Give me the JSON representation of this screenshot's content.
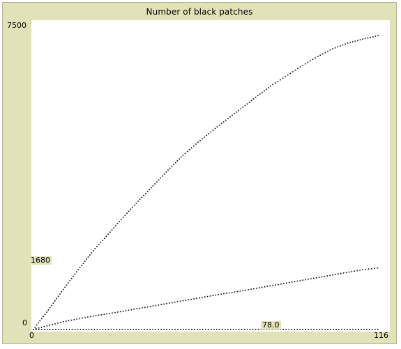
{
  "plot": {
    "title": "Number of  black patches",
    "y_max_label": "7500",
    "y_min_label": "0",
    "x_min_label": "0",
    "x_max_label": "116"
  },
  "value_labels": {
    "series2_label": "1680",
    "series3_label": "78.0"
  },
  "colors": {
    "frame": "#e2e2b9",
    "pen": "#000000"
  },
  "chart_data": {
    "type": "scatter",
    "title": "Number of  black patches",
    "xlim": [
      0,
      116
    ],
    "ylim": [
      0,
      7500
    ],
    "series": [
      {
        "x": [
          0,
          5,
          10,
          15,
          20,
          25,
          30,
          35,
          40,
          45,
          50,
          55,
          60,
          65,
          70,
          75,
          80,
          85,
          90,
          95,
          100,
          105,
          110,
          116
        ],
        "values": [
          0,
          480,
          990,
          1480,
          1950,
          2360,
          2780,
          3180,
          3560,
          3950,
          4320,
          4640,
          4940,
          5230,
          5510,
          5800,
          6070,
          6310,
          6550,
          6770,
          6960,
          7100,
          7200,
          7300
        ],
        "style": "dotted"
      },
      {
        "x": [
          0,
          10,
          20,
          30,
          40,
          50,
          60,
          70,
          80,
          90,
          100,
          110,
          116
        ],
        "values": [
          0,
          190,
          330,
          450,
          580,
          710,
          840,
          960,
          1090,
          1220,
          1350,
          1480,
          1530
        ],
        "style": "dotted"
      },
      {
        "x": [
          0,
          116
        ],
        "values": [
          0,
          0
        ],
        "style": "dotted"
      }
    ]
  }
}
